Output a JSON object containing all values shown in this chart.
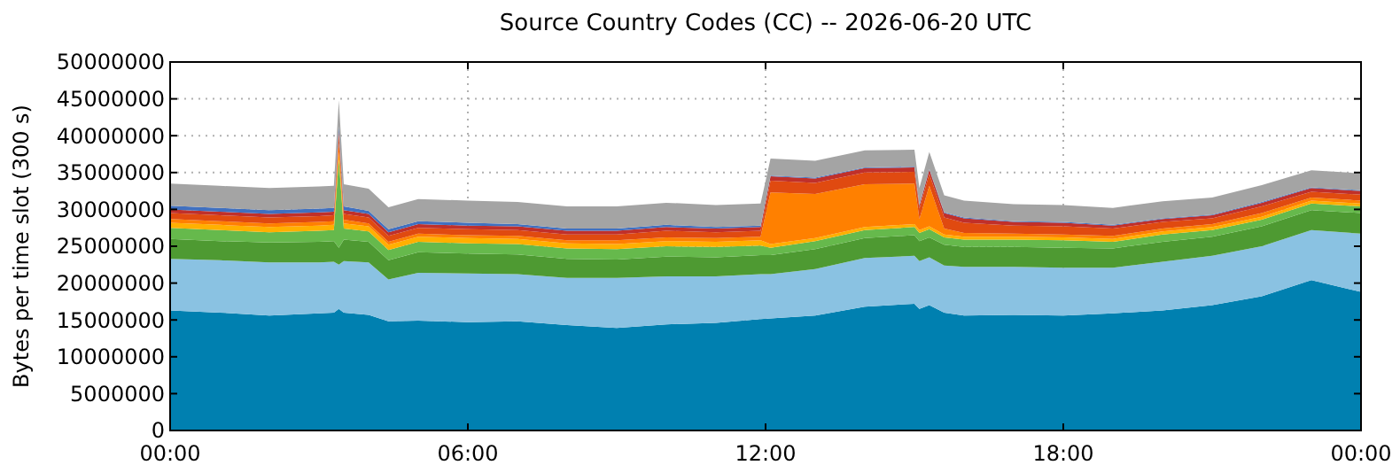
{
  "chart_data": {
    "type": "area",
    "stacked": true,
    "title": "Source Country Codes (CC) -- 2026-06-20 UTC",
    "ylabel": "Bytes per time slot (300 s)",
    "grid": true,
    "x": [
      0,
      1,
      2,
      3,
      3.3,
      3.4,
      3.5,
      4,
      4.4,
      5,
      6,
      7,
      8,
      9,
      10,
      11,
      11.9,
      12.1,
      13,
      14,
      15,
      15.1,
      15.3,
      15.6,
      16,
      17,
      18,
      19,
      20,
      21,
      22,
      23,
      24
    ],
    "xlim": [
      0,
      24
    ],
    "xticks": [
      {
        "value": 0,
        "label": "00:00"
      },
      {
        "value": 6,
        "label": "06:00"
      },
      {
        "value": 12,
        "label": "12:00"
      },
      {
        "value": 18,
        "label": "18:00"
      },
      {
        "value": 24,
        "label": "00:00"
      }
    ],
    "ylim": [
      0,
      50000000
    ],
    "yticks": [
      0,
      5000000,
      10000000,
      15000000,
      20000000,
      25000000,
      30000000,
      35000000,
      40000000,
      45000000,
      50000000
    ],
    "series": [
      {
        "color": "#0080b0",
        "values": [
          16300000.0,
          16000000.0,
          15600000.0,
          15900000.0,
          16000000.0,
          16500000.0,
          16000000.0,
          15700000.0,
          14800000.0,
          14900000.0,
          14700000.0,
          14800000.0,
          14300000.0,
          13900000.0,
          14400000.0,
          14600000.0,
          15100000.0,
          15200000.0,
          15600000.0,
          16800000.0,
          17200000.0,
          16500000.0,
          17000000.0,
          16000000.0,
          15600000.0,
          15700000.0,
          15600000.0,
          15900000.0,
          16300000.0,
          17000000.0,
          18200000.0,
          20400000.0,
          18800000.0
        ]
      },
      {
        "color": "#8ac2e2",
        "values": [
          7000000.0,
          7100000.0,
          7200000.0,
          6900000.0,
          6900000.0,
          6000000.0,
          7000000.0,
          7100000.0,
          5700000.0,
          6500000.0,
          6600000.0,
          6400000.0,
          6400000.0,
          6800000.0,
          6500000.0,
          6300000.0,
          6100000.0,
          6000000.0,
          6300000.0,
          6600000.0,
          6500000.0,
          6500000.0,
          6500000.0,
          6400000.0,
          6600000.0,
          6500000.0,
          6500000.0,
          6200000.0,
          6600000.0,
          6700000.0,
          6800000.0,
          6800000.0,
          7900000.0
        ]
      },
      {
        "color": "#4e9a32",
        "values": [
          2700000.0,
          2600000.0,
          2700000.0,
          2800000.0,
          2800000.0,
          2300000.0,
          2900000.0,
          2800000.0,
          2600000.0,
          2800000.0,
          2700000.0,
          2700000.0,
          2600000.0,
          2500000.0,
          2700000.0,
          2600000.0,
          2600000.0,
          2600000.0,
          2700000.0,
          2700000.0,
          2800000.0,
          2700000.0,
          2700000.0,
          2800000.0,
          2700000.0,
          2700000.0,
          2700000.0,
          2600000.0,
          2700000.0,
          2600000.0,
          2700000.0,
          2700000.0,
          2800000.0
        ]
      },
      {
        "color": "#66b94c",
        "values": [
          1500000.0,
          1500000.0,
          1400000.0,
          1500000.0,
          1500000.0,
          12000000.0,
          1500000.0,
          1400000.0,
          1400000.0,
          1400000.0,
          1400000.0,
          1400000.0,
          1400000.0,
          1400000.0,
          1400000.0,
          1400000.0,
          1300000.0,
          1000000.0,
          1100000.0,
          1100000.0,
          1100000.0,
          1100000.0,
          1100000.0,
          1000000.0,
          1000000.0,
          1000000.0,
          1000000.0,
          900000.0,
          1000000.0,
          900000.0,
          900000.0,
          900000.0,
          900000.0
        ]
      },
      {
        "color": "#ffb000",
        "values": [
          700000.0,
          700000.0,
          700000.0,
          700000.0,
          700000.0,
          1000000.0,
          700000.0,
          700000.0,
          700000.0,
          700000.0,
          700000.0,
          700000.0,
          700000.0,
          700000.0,
          700000.0,
          700000.0,
          700000.0,
          500000.0,
          400000.0,
          400000.0,
          400000.0,
          400000.0,
          400000.0,
          400000.0,
          400000.0,
          400000.0,
          400000.0,
          400000.0,
          400000.0,
          400000.0,
          400000.0,
          400000.0,
          400000.0
        ]
      },
      {
        "color": "#ff8000",
        "values": [
          500000.0,
          500000.0,
          500000.0,
          500000.0,
          500000.0,
          1200000.0,
          500000.0,
          400000.0,
          400000.0,
          400000.0,
          400000.0,
          400000.0,
          400000.0,
          500000.0,
          500000.0,
          500000.0,
          500000.0,
          7000000.0,
          6000000.0,
          5800000.0,
          5500000.0,
          1500000.0,
          5500000.0,
          800000.0,
          500000.0,
          400000.0,
          400000.0,
          400000.0,
          400000.0,
          400000.0,
          500000.0,
          400000.0,
          400000.0
        ]
      },
      {
        "color": "#e04a10",
        "values": [
          800000.0,
          800000.0,
          800000.0,
          800000.0,
          800000.0,
          1200000.0,
          800000.0,
          800000.0,
          800000.0,
          800000.0,
          800000.0,
          800000.0,
          800000.0,
          800000.0,
          900000.0,
          800000.0,
          800000.0,
          1600000.0,
          1500000.0,
          1600000.0,
          1600000.0,
          1400000.0,
          1600000.0,
          1500000.0,
          1400000.0,
          1100000.0,
          1100000.0,
          1000000.0,
          900000.0,
          800000.0,
          900000.0,
          800000.0,
          800000.0
        ]
      },
      {
        "color": "#c0302a",
        "values": [
          500000.0,
          500000.0,
          500000.0,
          500000.0,
          500000.0,
          500000.0,
          500000.0,
          500000.0,
          500000.0,
          500000.0,
          500000.0,
          500000.0,
          500000.0,
          500000.0,
          500000.0,
          500000.0,
          500000.0,
          600000.0,
          600000.0,
          600000.0,
          600000.0,
          400000.0,
          600000.0,
          600000.0,
          600000.0,
          500000.0,
          500000.0,
          400000.0,
          400000.0,
          400000.0,
          500000.0,
          500000.0,
          500000.0
        ]
      },
      {
        "color": "#4070c0",
        "values": [
          500000.0,
          500000.0,
          500000.0,
          500000.0,
          500000.0,
          600000.0,
          500000.0,
          400000.0,
          400000.0,
          400000.0,
          400000.0,
          300000.0,
          300000.0,
          300000.0,
          300000.0,
          200000.0,
          200000.0,
          100000.0,
          100000.0,
          100000.0,
          100000.0,
          100000.0,
          100000.0,
          100000.0,
          100000.0,
          100000.0,
          100000.0,
          100000.0,
          100000.0,
          100000.0,
          100000.0,
          100000.0,
          100000.0
        ]
      },
      {
        "color": "#a4a4a4",
        "values": [
          3000000.0,
          3000000.0,
          3000000.0,
          3000000.0,
          3000000.0,
          3500000.0,
          3000000.0,
          3000000.0,
          3000000.0,
          3000000.0,
          3000000.0,
          3000000.0,
          3000000.0,
          3000000.0,
          3000000.0,
          3000000.0,
          3000000.0,
          2300000.0,
          2300000.0,
          2300000.0,
          2300000.0,
          2300000.0,
          2300000.0,
          2300000.0,
          2300000.0,
          2300000.0,
          2300000.0,
          2300000.0,
          2300000.0,
          2300000.0,
          2300000.0,
          2300000.0,
          2300000.0
        ]
      }
    ]
  }
}
